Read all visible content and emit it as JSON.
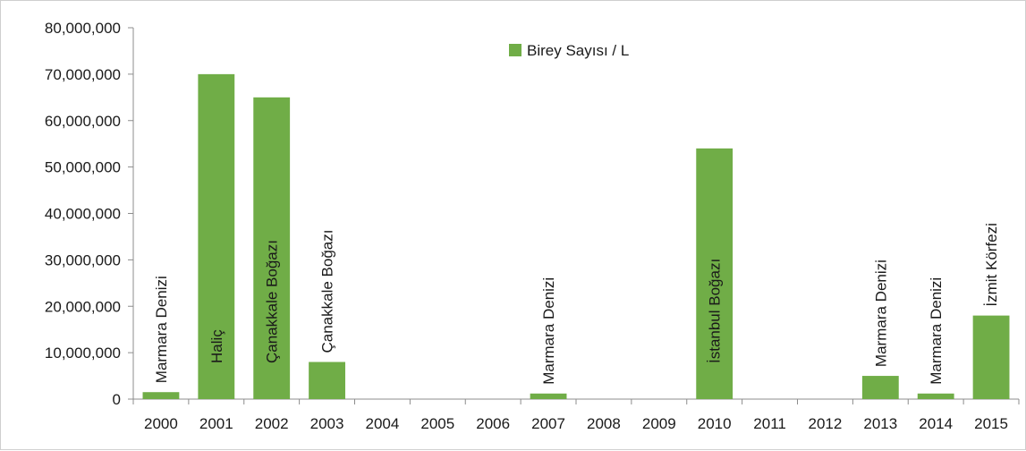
{
  "chart_data": {
    "type": "bar",
    "categories": [
      "2000",
      "2001",
      "2002",
      "2003",
      "2004",
      "2005",
      "2006",
      "2007",
      "2008",
      "2009",
      "2010",
      "2011",
      "2012",
      "2013",
      "2014",
      "2015"
    ],
    "series": [
      {
        "name": "Birey Sayısı / L",
        "values": [
          1500000,
          70000000,
          65000000,
          8000000,
          0,
          0,
          0,
          1200000,
          0,
          0,
          54000000,
          0,
          0,
          5000000,
          1200000,
          18000000
        ],
        "labels": [
          "Marmara Denizi",
          "Haliç",
          "Çanakkale Boğazı",
          "Çanakkale Boğazı",
          "",
          "",
          "",
          "Marmara Denizi",
          "",
          "",
          "İstanbul Boğazı",
          "",
          "",
          "Marmara Denizi",
          "Marmara Denizi",
          "İzmit Körfezi"
        ]
      }
    ],
    "ylim": [
      0,
      80000000
    ],
    "yticks": [
      "0",
      "10,000,000",
      "20,000,000",
      "30,000,000",
      "40,000,000",
      "50,000,000",
      "60,000,000",
      "70,000,000",
      "80,000,000"
    ],
    "title": "",
    "xlabel": "",
    "ylabel": "",
    "legend_position": "top-center",
    "grid": false,
    "bar_color": "#70ad47"
  }
}
